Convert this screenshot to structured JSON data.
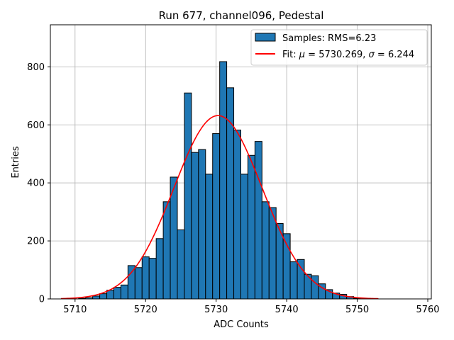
{
  "chart_data": {
    "type": "bar",
    "title": "Run 677, channel096, Pedestal",
    "xlabel": "ADC Counts",
    "ylabel": "Entries",
    "xlim": [
      5706.5,
      5760.5
    ],
    "ylim": [
      0,
      945
    ],
    "xticks": [
      5710,
      5720,
      5730,
      5740,
      5750,
      5760
    ],
    "yticks": [
      0,
      200,
      400,
      600,
      800
    ],
    "grid": true,
    "legend_position": "top-right",
    "bin_width": 1,
    "bins": [
      {
        "x": 5711,
        "y": 2
      },
      {
        "x": 5712,
        "y": 4
      },
      {
        "x": 5713,
        "y": 10
      },
      {
        "x": 5714,
        "y": 18
      },
      {
        "x": 5715,
        "y": 30
      },
      {
        "x": 5716,
        "y": 40
      },
      {
        "x": 5717,
        "y": 48
      },
      {
        "x": 5718,
        "y": 115
      },
      {
        "x": 5719,
        "y": 108
      },
      {
        "x": 5720,
        "y": 145
      },
      {
        "x": 5721,
        "y": 140
      },
      {
        "x": 5722,
        "y": 208
      },
      {
        "x": 5723,
        "y": 335
      },
      {
        "x": 5724,
        "y": 420
      },
      {
        "x": 5725,
        "y": 238
      },
      {
        "x": 5726,
        "y": 710
      },
      {
        "x": 5727,
        "y": 505
      },
      {
        "x": 5728,
        "y": 515
      },
      {
        "x": 5729,
        "y": 430
      },
      {
        "x": 5730,
        "y": 570
      },
      {
        "x": 5731,
        "y": 818
      },
      {
        "x": 5732,
        "y": 728
      },
      {
        "x": 5733,
        "y": 582
      },
      {
        "x": 5734,
        "y": 430
      },
      {
        "x": 5735,
        "y": 495
      },
      {
        "x": 5736,
        "y": 543
      },
      {
        "x": 5737,
        "y": 335
      },
      {
        "x": 5738,
        "y": 315
      },
      {
        "x": 5739,
        "y": 260
      },
      {
        "x": 5740,
        "y": 225
      },
      {
        "x": 5741,
        "y": 128
      },
      {
        "x": 5742,
        "y": 136
      },
      {
        "x": 5743,
        "y": 85
      },
      {
        "x": 5744,
        "y": 80
      },
      {
        "x": 5745,
        "y": 52
      },
      {
        "x": 5746,
        "y": 32
      },
      {
        "x": 5747,
        "y": 20
      },
      {
        "x": 5748,
        "y": 16
      },
      {
        "x": 5749,
        "y": 8
      },
      {
        "x": 5750,
        "y": 2
      }
    ],
    "bar_color": "#1f77b4",
    "fit": {
      "mu": 5730.269,
      "sigma": 6.244,
      "amplitude": 632,
      "x_range": [
        5708,
        5753
      ],
      "color": "#ff0000"
    },
    "legend": [
      {
        "label": "Samples: RMS=6.23",
        "kind": "patch",
        "color": "#1f77b4"
      },
      {
        "label": "Fit: ",
        "kind": "line",
        "color": "#ff0000"
      }
    ]
  }
}
